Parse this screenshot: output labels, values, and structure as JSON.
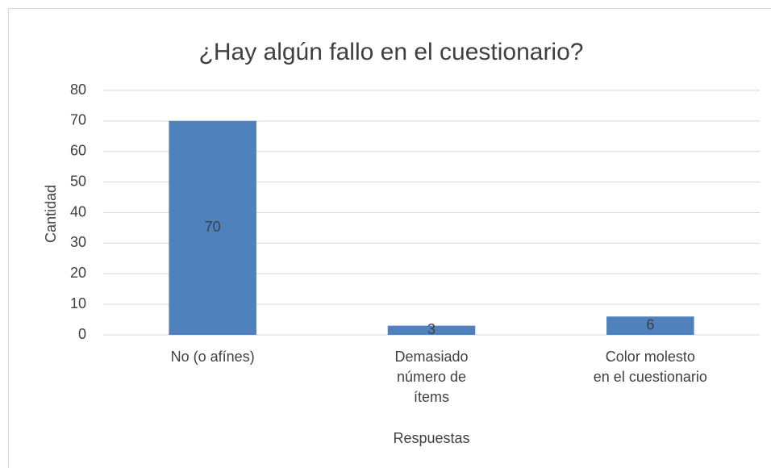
{
  "chart_data": {
    "type": "bar",
    "title": "¿Hay algún fallo en el cuestionario?",
    "x_label": "Respuestas",
    "y_label": "Cantidad",
    "categories": [
      "No (o afínes)",
      "Demasiado\nnúmero de\nítems",
      "Color molesto\nen el cuestionario"
    ],
    "values": [
      70,
      3,
      6
    ],
    "color": "#4f81bd",
    "ylim": [
      0,
      80
    ],
    "yticks": [
      0,
      10,
      20,
      30,
      40,
      50,
      60,
      70,
      80
    ],
    "grid": true,
    "data_labels": true
  }
}
